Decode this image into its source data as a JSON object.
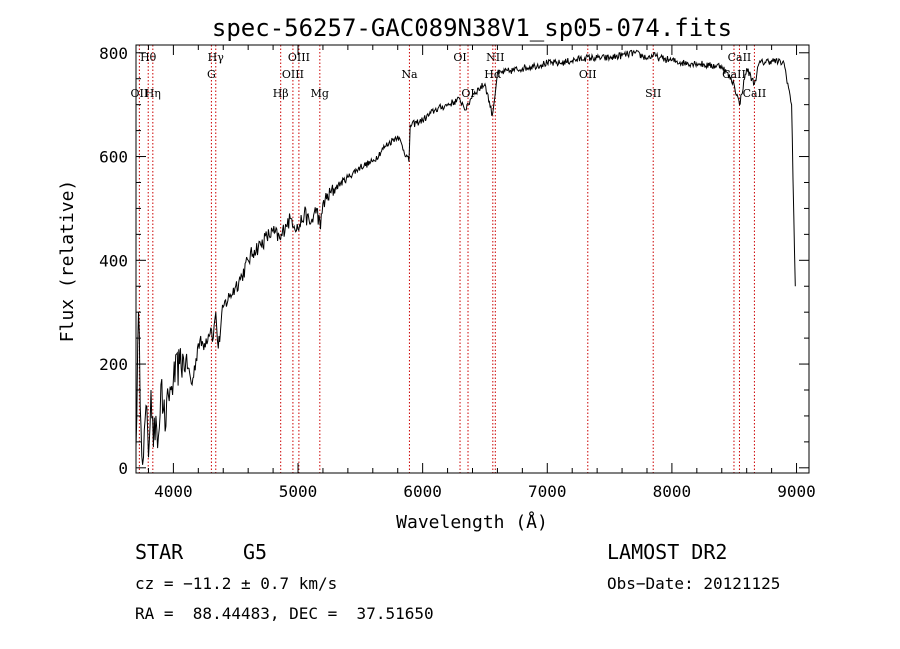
{
  "chart_data": {
    "type": "line",
    "title": "spec-56257-GAC089N38V1_sp05-074.fits",
    "xlabel": "Wavelength (Å)",
    "ylabel": "Flux (relative)",
    "xlim": [
      3700,
      9100
    ],
    "ylim": [
      -10,
      815
    ],
    "xticks": [
      4000,
      5000,
      6000,
      7000,
      8000,
      9000
    ],
    "yticks": [
      0,
      200,
      400,
      600,
      800
    ],
    "xtick_labels": [
      "4000",
      "5000",
      "6000",
      "7000",
      "8000",
      "9000"
    ],
    "ytick_labels": [
      "0",
      "200",
      "400",
      "600",
      "800"
    ],
    "series": [
      {
        "name": "Flux",
        "x": [
          3700,
          3720,
          3740,
          3760,
          3780,
          3800,
          3820,
          3840,
          3860,
          3880,
          3900,
          3920,
          3940,
          3960,
          3980,
          4000,
          4050,
          4100,
          4150,
          4200,
          4250,
          4300,
          4320,
          4340,
          4360,
          4400,
          4450,
          4500,
          4550,
          4600,
          4650,
          4700,
          4750,
          4800,
          4860,
          4900,
          4950,
          5000,
          5050,
          5100,
          5150,
          5180,
          5200,
          5300,
          5400,
          5500,
          5600,
          5700,
          5800,
          5890,
          5900,
          6000,
          6100,
          6200,
          6300,
          6350,
          6400,
          6500,
          6560,
          6600,
          6700,
          6800,
          6900,
          7000,
          7100,
          7200,
          7300,
          7400,
          7500,
          7600,
          7700,
          7800,
          7850,
          7900,
          8000,
          8100,
          8200,
          8300,
          8400,
          8498,
          8542,
          8600,
          8662,
          8700,
          8800,
          8900,
          8960,
          8990
        ],
        "values": [
          40,
          300,
          80,
          20,
          120,
          20,
          150,
          40,
          100,
          60,
          160,
          110,
          80,
          140,
          150,
          170,
          200,
          210,
          160,
          240,
          240,
          270,
          250,
          300,
          230,
          310,
          330,
          350,
          370,
          400,
          420,
          430,
          445,
          455,
          440,
          470,
          480,
          460,
          490,
          470,
          500,
          460,
          510,
          540,
          560,
          580,
          590,
          620,
          640,
          590,
          660,
          670,
          690,
          700,
          710,
          690,
          720,
          740,
          680,
          760,
          765,
          770,
          775,
          780,
          780,
          785,
          790,
          790,
          790,
          795,
          800,
          790,
          795,
          790,
          785,
          780,
          780,
          775,
          775,
          740,
          700,
          770,
          740,
          780,
          785,
          780,
          700,
          350
        ]
      }
    ],
    "lines": [
      {
        "label": "Hθ",
        "wavelength": 3798,
        "row": 1
      },
      {
        "label": "OII",
        "wavelength": 3727,
        "row": 3
      },
      {
        "label": "Hη",
        "wavelength": 3835,
        "row": 3
      },
      {
        "label": "Hγ",
        "wavelength": 4340,
        "row": 1
      },
      {
        "label": "G",
        "wavelength": 4305,
        "row": 2
      },
      {
        "label": "Hβ",
        "wavelength": 4861,
        "row": 3
      },
      {
        "label": "OIII",
        "wavelength": 5007,
        "row": 1
      },
      {
        "label": "OIII",
        "wavelength": 4959,
        "row": 2
      },
      {
        "label": "Mg",
        "wavelength": 5175,
        "row": 3
      },
      {
        "label": "Na",
        "wavelength": 5894,
        "row": 2
      },
      {
        "label": "OI",
        "wavelength": 6300,
        "row": 1
      },
      {
        "label": "OI",
        "wavelength": 6364,
        "row": 3
      },
      {
        "label": "NII",
        "wavelength": 6583,
        "row": 1
      },
      {
        "label": "Hα",
        "wavelength": 6563,
        "row": 2
      },
      {
        "label": "OII",
        "wavelength": 7325,
        "row": 2
      },
      {
        "label": "SII",
        "wavelength": 7850,
        "row": 3
      },
      {
        "label": "CaII",
        "wavelength": 8542,
        "row": 1
      },
      {
        "label": "CaII",
        "wavelength": 8498,
        "row": 2
      },
      {
        "label": "CaII",
        "wavelength": 8662,
        "row": 3
      }
    ]
  },
  "info": {
    "object_class": "STAR",
    "subclass": "G5",
    "velocity": "cz = −11.2 ± 0.7 km/s",
    "coordinates": "RA =  88.44483, DEC =  37.51650",
    "survey": "LAMOST DR2",
    "obs_date": "Obs−Date: 20121125"
  },
  "colors": {
    "spectrum": "#000000",
    "line_marker": "#cc0000",
    "axes": "#000000",
    "background": "#ffffff"
  }
}
